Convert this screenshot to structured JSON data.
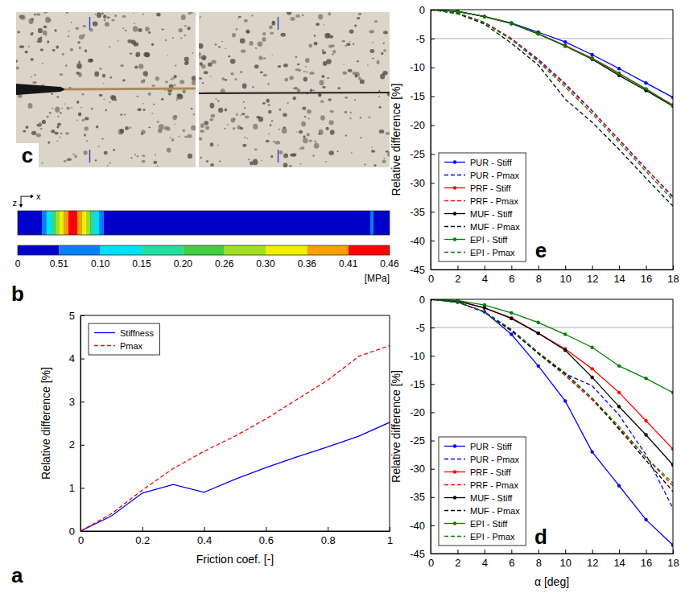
{
  "panels": {
    "c": {
      "panel_label": "c"
    },
    "b": {
      "panel_label": "b",
      "axis_labels": [
        "x",
        "z"
      ],
      "colorbar": {
        "labels": [
          "0",
          "0.51",
          "0.10",
          "0.15",
          "0.20",
          "0.26",
          "0.30",
          "0.36",
          "0.41",
          "0.46"
        ],
        "colors": [
          "#0000cc",
          "#0080ff",
          "#00e0ff",
          "#20e0a0",
          "#40d040",
          "#a0e020",
          "#f0f000",
          "#ffa000",
          "#ff0000"
        ],
        "unit": "[MPa]"
      }
    }
  },
  "chart_data": [
    {
      "type": "line",
      "panel_label": "a",
      "xlabel": "Friction coef. [-]",
      "ylabel": "Relative difference [%]",
      "x": [
        0,
        0.1,
        0.2,
        0.3,
        0.4,
        0.5,
        0.6,
        0.7,
        0.8,
        0.9,
        1
      ],
      "xlim": [
        0,
        1
      ],
      "xticks": [
        0,
        0.2,
        0.4,
        0.6,
        0.8,
        1
      ],
      "ylim": [
        0,
        5
      ],
      "yticks": [
        0,
        1,
        2,
        3,
        4,
        5
      ],
      "legend": "upper left",
      "series": [
        {
          "name": "Stiffness",
          "color": "#0000ff",
          "line_style": "solid",
          "values": [
            0,
            0.35,
            0.88,
            1.08,
            0.9,
            1.2,
            1.47,
            1.72,
            1.95,
            2.2,
            2.52
          ]
        },
        {
          "name": "Pmax",
          "color": "#ff0000",
          "line_style": "dashed",
          "values": [
            0,
            0.4,
            0.95,
            1.45,
            1.85,
            2.2,
            2.6,
            3.05,
            3.5,
            4.05,
            4.3
          ]
        }
      ]
    },
    {
      "type": "line",
      "panel_label": "e",
      "ylabel": "Relative difference [%]",
      "x": [
        0,
        2,
        4,
        6,
        8,
        10,
        12,
        14,
        16,
        18
      ],
      "xlim": [
        0,
        18
      ],
      "xticks": [
        0,
        2,
        4,
        6,
        8,
        10,
        12,
        14,
        16,
        18
      ],
      "ylim": [
        -45,
        0
      ],
      "yticks": [
        0,
        -5,
        -10,
        -15,
        -20,
        -25,
        -30,
        -35,
        -40,
        -45
      ],
      "hline": -5,
      "legend": "lower left",
      "series": [
        {
          "name": "PUR - Stiff",
          "color": "#0000ff",
          "line_style": "solid",
          "marker": "dot",
          "values": [
            0,
            -0.3,
            -1.2,
            -2.3,
            -3.9,
            -5.6,
            -7.8,
            -10.2,
            -12.7,
            -15.2
          ]
        },
        {
          "name": "PUR - Pmax",
          "color": "#0000ff",
          "line_style": "dashed",
          "values": [
            0,
            -0.6,
            -2.2,
            -5.0,
            -8.6,
            -12.8,
            -17.5,
            -22.5,
            -27.5,
            -32.5
          ]
        },
        {
          "name": "PRF - Stiff",
          "color": "#ff0000",
          "line_style": "solid",
          "marker": "dot",
          "values": [
            0,
            -0.3,
            -1.2,
            -2.4,
            -4.2,
            -6.2,
            -8.4,
            -11.0,
            -13.8,
            -16.5
          ]
        },
        {
          "name": "PRF - Pmax",
          "color": "#ff0000",
          "line_style": "dashed",
          "values": [
            0,
            -0.6,
            -2.2,
            -5.0,
            -8.8,
            -13.0,
            -17.6,
            -22.6,
            -27.6,
            -32.3
          ]
        },
        {
          "name": "MUF - Stiff",
          "color": "#000000",
          "line_style": "solid",
          "marker": "dot",
          "values": [
            0,
            -0.3,
            -1.2,
            -2.4,
            -4.2,
            -6.3,
            -8.6,
            -11.4,
            -14.0,
            -16.7
          ]
        },
        {
          "name": "MUF - Pmax",
          "color": "#000000",
          "line_style": "dashed",
          "values": [
            0,
            -0.7,
            -2.5,
            -5.8,
            -9.6,
            -15.5,
            -19.5,
            -24.2,
            -29.2,
            -34.0
          ]
        },
        {
          "name": "EPI - Stiff",
          "color": "#008000",
          "line_style": "solid",
          "marker": "dot",
          "values": [
            0,
            -0.3,
            -1.2,
            -2.4,
            -4.2,
            -6.3,
            -8.5,
            -11.1,
            -13.7,
            -16.6
          ]
        },
        {
          "name": "EPI - Pmax",
          "color": "#008000",
          "line_style": "dashed",
          "values": [
            0,
            -0.6,
            -2.3,
            -5.2,
            -9.0,
            -13.4,
            -18.0,
            -23.0,
            -28.0,
            -33.0
          ]
        }
      ]
    },
    {
      "type": "line",
      "panel_label": "d",
      "xlabel": "α [deg]",
      "ylabel": "Relative difference [%]",
      "x": [
        0,
        2,
        4,
        6,
        8,
        10,
        12,
        14,
        16,
        18
      ],
      "xlim": [
        0,
        18
      ],
      "xticks": [
        0,
        2,
        4,
        6,
        8,
        10,
        12,
        14,
        16,
        18
      ],
      "ylim": [
        -45,
        0
      ],
      "yticks": [
        0,
        -5,
        -10,
        -15,
        -20,
        -25,
        -30,
        -35,
        -40,
        -45
      ],
      "hline": -5,
      "legend": "lower left",
      "series": [
        {
          "name": "PUR - Stiff",
          "color": "#0000ff",
          "line_style": "solid",
          "marker": "dot",
          "values": [
            0,
            -0.5,
            -2.2,
            -6.2,
            -11.8,
            -18.0,
            -27.0,
            -33.0,
            -39.0,
            -43.5
          ]
        },
        {
          "name": "PUR - Pmax",
          "color": "#0000ff",
          "line_style": "dashed",
          "values": [
            0,
            -0.5,
            -2.3,
            -5.6,
            -9.5,
            -13.2,
            -15.3,
            -20.5,
            -27.5,
            -37.0
          ]
        },
        {
          "name": "PRF - Stiff",
          "color": "#ff0000",
          "line_style": "solid",
          "marker": "dot",
          "values": [
            0,
            -0.3,
            -1.5,
            -3.3,
            -6.0,
            -8.8,
            -12.3,
            -16.5,
            -21.5,
            -26.5
          ]
        },
        {
          "name": "PRF - Pmax",
          "color": "#ff0000",
          "line_style": "dashed",
          "values": [
            0,
            -0.5,
            -2.2,
            -5.5,
            -9.6,
            -13.5,
            -17.8,
            -22.8,
            -28.0,
            -33.0
          ]
        },
        {
          "name": "MUF - Stiff",
          "color": "#000000",
          "line_style": "solid",
          "marker": "dot",
          "values": [
            0,
            -0.3,
            -1.5,
            -3.4,
            -6.0,
            -9.0,
            -13.8,
            -19.0,
            -24.0,
            -29.3
          ]
        },
        {
          "name": "MUF - Pmax",
          "color": "#000000",
          "line_style": "dashed",
          "values": [
            0,
            -0.5,
            -2.2,
            -5.5,
            -9.6,
            -13.2,
            -17.5,
            -23.0,
            -28.5,
            -34.0
          ]
        },
        {
          "name": "EPI - Stiff",
          "color": "#008000",
          "line_style": "solid",
          "marker": "dot",
          "values": [
            0,
            -0.2,
            -1.0,
            -2.4,
            -4.1,
            -6.2,
            -8.5,
            -11.8,
            -14.0,
            -16.5
          ]
        },
        {
          "name": "EPI - Pmax",
          "color": "#008000",
          "line_style": "dashed",
          "values": [
            0,
            -0.5,
            -2.2,
            -5.3,
            -9.4,
            -13.0,
            -17.5,
            -22.5,
            -28.0,
            -32.5
          ]
        }
      ]
    }
  ]
}
